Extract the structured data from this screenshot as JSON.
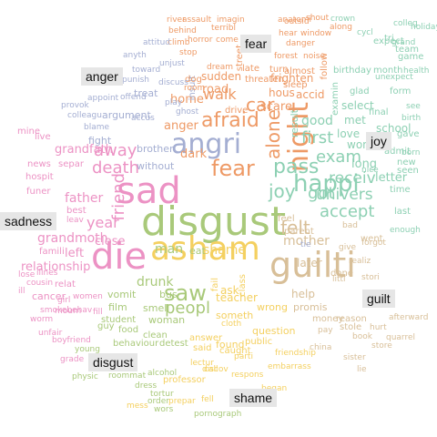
{
  "colors": {
    "anger": "#ee9a66",
    "disgust": "#a9c97a",
    "fear": "#ee9a66",
    "guilt": "#d8bf98",
    "joy": "#8dd0b3",
    "sadness": "#ec92c4",
    "shame": "#f4d060",
    "neutral": "#a4aed2"
  },
  "labels": {
    "anger": "anger",
    "fear": "fear",
    "joy": "joy",
    "sadness": "sadness",
    "guilt": "guilt",
    "disgust": "disgust",
    "shame": "shame"
  },
  "words": [
    {
      "text": "disgust",
      "cls": "disgust"
    },
    {
      "text": "sad",
      "cls": "sadness"
    },
    {
      "text": "die",
      "cls": "sadness"
    },
    {
      "text": "asham",
      "cls": "shame"
    },
    {
      "text": "guilti",
      "cls": "guilt"
    },
    {
      "text": "angri",
      "cls": "neutral"
    },
    {
      "text": "night",
      "cls": "fear"
    },
    {
      "text": "fear",
      "cls": "fear"
    },
    {
      "text": "afraid",
      "cls": "fear"
    },
    {
      "text": "happi",
      "cls": "joy"
    },
    {
      "text": "pass",
      "cls": "joy"
    },
    {
      "text": "alone",
      "cls": "fear"
    },
    {
      "text": "saw",
      "cls": "disgust"
    },
    {
      "text": "felt",
      "cls": "guilt"
    },
    {
      "text": "joy",
      "cls": "joy"
    },
    {
      "text": "car",
      "cls": "fear"
    },
    {
      "text": "got",
      "cls": "joy"
    },
    {
      "text": "death",
      "cls": "sadness"
    },
    {
      "text": "away",
      "cls": "sadness"
    },
    {
      "text": "friend",
      "cls": "sadness"
    },
    {
      "text": "exam",
      "cls": "joy"
    },
    {
      "text": "first",
      "cls": "joy"
    },
    {
      "text": "peopl",
      "cls": "disgust"
    },
    {
      "text": "accept",
      "cls": "joy"
    },
    {
      "text": "univers",
      "cls": "joy"
    },
    {
      "text": "receiv",
      "cls": "joy"
    },
    {
      "text": "walk",
      "cls": "fear"
    },
    {
      "text": "year",
      "cls": "sadness"
    },
    {
      "text": "father",
      "cls": "sadness"
    },
    {
      "text": "mother",
      "cls": "guilt"
    },
    {
      "text": "shame",
      "cls": "shame"
    },
    {
      "text": "man",
      "cls": "disgust"
    },
    {
      "text": "drunk",
      "cls": "disgust"
    },
    {
      "text": "grandmoth",
      "cls": "sadness"
    },
    {
      "text": "grandfath",
      "cls": "sadness"
    },
    {
      "text": "relationship",
      "cls": "sadness"
    },
    {
      "text": "close",
      "cls": "sadness"
    },
    {
      "text": "left",
      "cls": "sadness"
    },
    {
      "text": "home",
      "cls": "fear"
    },
    {
      "text": "road",
      "cls": "fear"
    },
    {
      "text": "dark",
      "cls": "fear"
    },
    {
      "text": "scare",
      "cls": "fear"
    },
    {
      "text": "good",
      "cls": "joy"
    },
    {
      "text": "long",
      "cls": "joy"
    },
    {
      "text": "letter",
      "cls": "joy"
    },
    {
      "text": "later",
      "cls": "guilt"
    },
    {
      "text": "help",
      "cls": "guilt"
    },
    {
      "text": "teacher",
      "cls": "shame"
    },
    {
      "text": "ask",
      "cls": "shame"
    },
    {
      "text": "school",
      "cls": "joy"
    },
    {
      "text": "love",
      "cls": "joy"
    },
    {
      "text": "met",
      "cls": "joy"
    },
    {
      "text": "won",
      "cls": "joy"
    },
    {
      "text": "select",
      "cls": "joy"
    },
    {
      "text": "result",
      "cls": "joy"
    },
    {
      "text": "anger",
      "cls": "anger"
    },
    {
      "text": "brother",
      "cls": "neutral"
    },
    {
      "text": "sudden",
      "cls": "fear"
    },
    {
      "text": "frighten",
      "cls": "fear"
    },
    {
      "text": "hous",
      "cls": "fear"
    },
    {
      "text": "accid",
      "cls": "fear"
    },
    {
      "text": "bus",
      "cls": "disgust"
    },
    {
      "text": "vomit",
      "cls": "disgust"
    },
    {
      "text": "woman",
      "cls": "disgust"
    },
    {
      "text": "smell",
      "cls": "disgust"
    },
    {
      "text": "film",
      "cls": "disgust"
    },
    {
      "text": "eat",
      "cls": "disgust"
    },
    {
      "text": "someth",
      "cls": "shame"
    },
    {
      "text": "wrong",
      "cls": "shame"
    },
    {
      "text": "question",
      "cls": "shame"
    },
    {
      "text": "found",
      "cls": "shame"
    },
    {
      "text": "promis",
      "cls": "guilt"
    },
    {
      "text": "money",
      "cls": "guilt"
    },
    {
      "text": "done",
      "cls": "guilt"
    },
    {
      "text": "parent",
      "cls": "guilt"
    },
    {
      "text": "feel",
      "cls": "guilt"
    },
    {
      "text": "went",
      "cls": "guilt"
    },
    {
      "text": "without",
      "cls": "neutral"
    },
    {
      "text": "insult",
      "cls": "neutral"
    },
    {
      "text": "treat",
      "cls": "neutral"
    },
    {
      "text": "argument",
      "cls": "neutral"
    },
    {
      "text": "fight",
      "cls": "neutral"
    },
    {
      "text": "cancer",
      "cls": "sadness"
    },
    {
      "text": "hospit",
      "cls": "sadness"
    },
    {
      "text": "funer",
      "cls": "sadness"
    },
    {
      "text": "news",
      "cls": "sadness"
    },
    {
      "text": "separ",
      "cls": "sadness"
    },
    {
      "text": "best",
      "cls": "sadness"
    },
    {
      "text": "famili",
      "cls": "sadness"
    },
    {
      "text": "relat",
      "cls": "sadness"
    },
    {
      "text": "live",
      "cls": "sadness"
    },
    {
      "text": "mine",
      "cls": "sadness"
    },
    {
      "text": "student",
      "cls": "disgust"
    },
    {
      "text": "guy",
      "cls": "disgust"
    },
    {
      "text": "food",
      "cls": "disgust"
    },
    {
      "text": "clean",
      "cls": "disgust"
    },
    {
      "text": "behaviour",
      "cls": "disgust"
    },
    {
      "text": "detest",
      "cls": "disgust"
    },
    {
      "text": "professor",
      "cls": "shame"
    },
    {
      "text": "caught",
      "cls": "shame"
    },
    {
      "text": "said",
      "cls": "shame"
    },
    {
      "text": "answer",
      "cls": "shame"
    },
    {
      "text": "public",
      "cls": "shame"
    },
    {
      "text": "class",
      "cls": "shame"
    },
    {
      "text": "fail",
      "cls": "shame"
    },
    {
      "text": "stole",
      "cls": "guilt"
    },
    {
      "text": "reason",
      "cls": "guilt"
    },
    {
      "text": "gave",
      "cls": "joy"
    },
    {
      "text": "admit",
      "cls": "joy"
    },
    {
      "text": "new",
      "cls": "joy"
    },
    {
      "text": "time",
      "cls": "joy"
    },
    {
      "text": "seen",
      "cls": "joy"
    },
    {
      "text": "last",
      "cls": "joy"
    },
    {
      "text": "final",
      "cls": "joy"
    },
    {
      "text": "glad",
      "cls": "joy"
    },
    {
      "text": "form",
      "cls": "joy"
    },
    {
      "text": "month",
      "cls": "joy"
    },
    {
      "text": "birthday",
      "cls": "joy"
    },
    {
      "text": "examin",
      "cls": "joy"
    },
    {
      "text": "expect",
      "cls": "joy"
    },
    {
      "text": "team",
      "cls": "joy"
    },
    {
      "text": "game",
      "cls": "joy"
    },
    {
      "text": "tri",
      "cls": "joy"
    },
    {
      "text": "follow",
      "cls": "fear"
    },
    {
      "text": "turn",
      "cls": "fear"
    },
    {
      "text": "late",
      "cls": "fear"
    },
    {
      "text": "dog",
      "cls": "fear"
    },
    {
      "text": "drive",
      "cls": "fear"
    },
    {
      "text": "threaten",
      "cls": "fear"
    },
    {
      "text": "sleep",
      "cls": "fear"
    },
    {
      "text": "street",
      "cls": "fear"
    },
    {
      "text": "almost",
      "cls": "fear"
    },
    {
      "text": "stop",
      "cls": "fear"
    },
    {
      "text": "climb",
      "cls": "fear"
    },
    {
      "text": "horror",
      "cls": "fear"
    },
    {
      "text": "come",
      "cls": "fear"
    },
    {
      "text": "dream",
      "cls": "fear"
    },
    {
      "text": "room",
      "cls": "fear"
    },
    {
      "text": "danger",
      "cls": "fear"
    },
    {
      "text": "window",
      "cls": "fear"
    },
    {
      "text": "hear",
      "cls": "fear"
    },
    {
      "text": "along",
      "cls": "fear"
    },
    {
      "text": "outsid",
      "cls": "fear"
    },
    {
      "text": "terribl",
      "cls": "fear"
    },
    {
      "text": "imagin",
      "cls": "fear"
    },
    {
      "text": "assault",
      "cls": "fear"
    },
    {
      "text": "behind",
      "cls": "fear"
    },
    {
      "text": "forest",
      "cls": "fear"
    },
    {
      "text": "realiz",
      "cls": "guilt"
    },
    {
      "text": "bad",
      "cls": "guilt"
    },
    {
      "text": "forgot",
      "cls": "guilt"
    },
    {
      "text": "give",
      "cls": "guilt"
    },
    {
      "text": "littl",
      "cls": "guilt"
    },
    {
      "text": "stori",
      "cls": "guilt"
    },
    {
      "text": "pornograph",
      "cls": "disgust"
    },
    {
      "text": "roommat",
      "cls": "disgust"
    },
    {
      "text": "alcohol",
      "cls": "disgust"
    },
    {
      "text": "order",
      "cls": "disgust"
    },
    {
      "text": "dress",
      "cls": "disgust"
    },
    {
      "text": "physic",
      "cls": "disgust"
    },
    {
      "text": "young",
      "cls": "disgust"
    },
    {
      "text": "tortur",
      "cls": "disgust"
    },
    {
      "text": "wors",
      "cls": "disgust"
    },
    {
      "text": "anyth",
      "cls": "neutral"
    },
    {
      "text": "punish",
      "cls": "neutral"
    },
    {
      "text": "colleagu",
      "cls": "neutral"
    },
    {
      "text": "accus",
      "cls": "neutral"
    },
    {
      "text": "blame",
      "cls": "neutral"
    },
    {
      "text": "unjust",
      "cls": "neutral"
    },
    {
      "text": "offend",
      "cls": "neutral"
    },
    {
      "text": "play",
      "cls": "neutral"
    },
    {
      "text": "toward",
      "cls": "neutral"
    },
    {
      "text": "discuss",
      "cls": "neutral"
    },
    {
      "text": "provok",
      "cls": "neutral"
    },
    {
      "text": "appoint",
      "cls": "neutral"
    },
    {
      "text": "attitud",
      "cls": "neutral"
    },
    {
      "text": "girl",
      "cls": "sadness"
    },
    {
      "text": "women",
      "cls": "sadness"
    },
    {
      "text": "mourn",
      "cls": "sadness"
    },
    {
      "text": "illnes",
      "cls": "sadness"
    },
    {
      "text": "worm",
      "cls": "sadness"
    },
    {
      "text": "leav",
      "cls": "sadness"
    },
    {
      "text": "smokebehav",
      "cls": "sadness"
    },
    {
      "text": "unfair",
      "cls": "sadness"
    },
    {
      "text": "lose",
      "cls": "sadness"
    },
    {
      "text": "boyfriend",
      "cls": "sadness"
    },
    {
      "text": "grade",
      "cls": "sadness"
    },
    {
      "text": "cousin",
      "cls": "sadness"
    },
    {
      "text": "ill",
      "cls": "sadness"
    },
    {
      "text": "fill",
      "cls": "sadness"
    },
    {
      "text": "mess",
      "cls": "shame"
    },
    {
      "text": "prepar",
      "cls": "shame"
    },
    {
      "text": "respons",
      "cls": "shame"
    },
    {
      "text": "embarrass",
      "cls": "shame"
    },
    {
      "text": "friendship",
      "cls": "shame"
    },
    {
      "text": "lectur",
      "cls": "shame"
    },
    {
      "text": "call",
      "cls": "shame"
    },
    {
      "text": "cloth",
      "cls": "shame"
    },
    {
      "text": "discov",
      "cls": "shame"
    },
    {
      "text": "parti",
      "cls": "shame"
    },
    {
      "text": "began",
      "cls": "shame"
    },
    {
      "text": "fell",
      "cls": "shame"
    },
    {
      "text": "quarrel",
      "cls": "guilt"
    },
    {
      "text": "book",
      "cls": "guilt"
    },
    {
      "text": "china",
      "cls": "guilt"
    },
    {
      "text": "afterward",
      "cls": "guilt"
    },
    {
      "text": "store",
      "cls": "guilt"
    },
    {
      "text": "hurt",
      "cls": "guilt"
    },
    {
      "text": "pay",
      "cls": "guilt"
    },
    {
      "text": "sister",
      "cls": "guilt"
    },
    {
      "text": "lie",
      "cls": "guilt"
    },
    {
      "text": "unexpect",
      "cls": "joy"
    },
    {
      "text": "colleg",
      "cls": "joy"
    },
    {
      "text": "holiday",
      "cls": "joy"
    },
    {
      "text": "crown",
      "cls": "joy"
    },
    {
      "text": "nice",
      "cls": "joy"
    },
    {
      "text": "cycl",
      "cls": "joy"
    },
    {
      "text": "see",
      "cls": "joy"
    },
    {
      "text": "born",
      "cls": "joy"
    },
    {
      "text": "enough",
      "cls": "joy"
    },
    {
      "text": "birth",
      "cls": "joy"
    },
    {
      "text": "health",
      "cls": "joy"
    },
    {
      "text": "grand",
      "cls": "joy"
    },
    {
      "text": "river",
      "cls": "fear"
    },
    {
      "text": "anatomi",
      "cls": "fear"
    },
    {
      "text": "noise",
      "cls": "fear"
    },
    {
      "text": "shout",
      "cls": "fear"
    },
    {
      "text": "tie",
      "cls": "neutral"
    },
    {
      "text": "ghost",
      "cls": "neutral"
    }
  ]
}
